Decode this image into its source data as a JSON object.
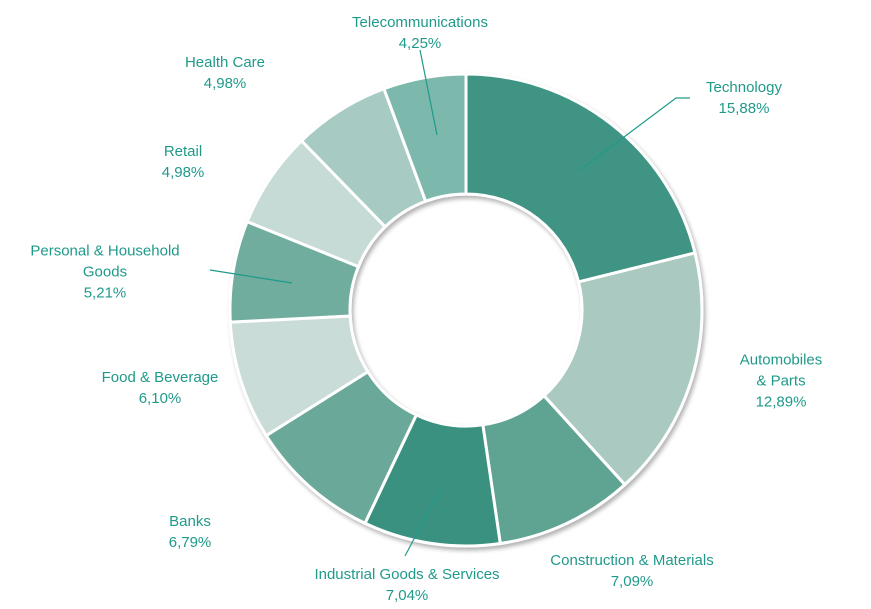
{
  "chart_data": {
    "type": "donut",
    "categories": [
      "Technology",
      "Automobiles & Parts",
      "Construction & Materials",
      "Industrial Goods & Services",
      "Banks",
      "Food & Beverage",
      "Personal & Household Goods",
      "Retail",
      "Health Care",
      "Telecommunications"
    ],
    "values": [
      15.88,
      12.89,
      7.09,
      7.04,
      6.79,
      6.1,
      5.21,
      4.98,
      4.98,
      4.25
    ],
    "value_labels": [
      "15,88%",
      "12,89%",
      "7,09%",
      "7,04%",
      "6,79%",
      "6,10%",
      "5,21%",
      "4,98%",
      "4,98%",
      "4,25%"
    ],
    "colors": [
      "#3f9483",
      "#a9c9c1",
      "#5ea393",
      "#3a9180",
      "#6ba89a",
      "#c9dcd8",
      "#6fad9f",
      "#c6dbd6",
      "#a7cbc3",
      "#7db8ad"
    ]
  }
}
